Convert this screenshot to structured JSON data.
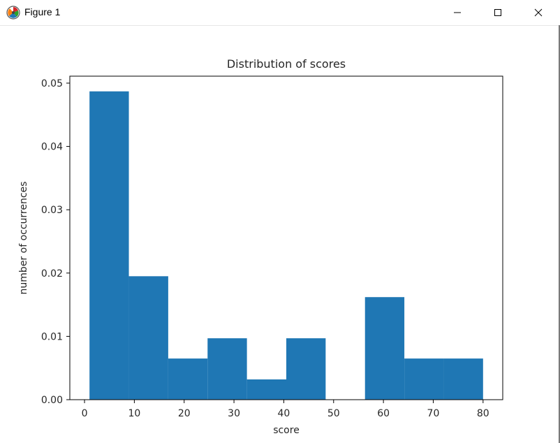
{
  "window": {
    "title": "Figure 1",
    "icon": "matplotlib-icon",
    "controls": [
      "minimize-icon",
      "maximize-icon",
      "close-icon"
    ]
  },
  "chart_data": {
    "type": "bar",
    "title": "Distribution of scores",
    "xlabel": "score",
    "ylabel": "number of occurrences",
    "bar_color": "#1f77b4",
    "bins": [
      {
        "x0": 1,
        "x1": 8.9,
        "value": 0.0487
      },
      {
        "x0": 8.9,
        "x1": 16.8,
        "value": 0.0195
      },
      {
        "x0": 16.8,
        "x1": 24.7,
        "value": 0.0065
      },
      {
        "x0": 24.7,
        "x1": 32.6,
        "value": 0.0097
      },
      {
        "x0": 32.6,
        "x1": 40.5,
        "value": 0.0032
      },
      {
        "x0": 40.5,
        "x1": 48.4,
        "value": 0.0097
      },
      {
        "x0": 48.4,
        "x1": 56.3,
        "value": 0
      },
      {
        "x0": 56.3,
        "x1": 64.2,
        "value": 0.0162
      },
      {
        "x0": 64.2,
        "x1": 72.1,
        "value": 0.0065
      },
      {
        "x0": 72.1,
        "x1": 80,
        "value": 0.0065
      }
    ],
    "xlim": [
      -2.95,
      83.95
    ],
    "ylim": [
      0,
      0.0511
    ],
    "xticks": [
      0,
      10,
      20,
      30,
      40,
      50,
      60,
      70,
      80
    ],
    "xtick_labels": [
      "0",
      "10",
      "20",
      "30",
      "40",
      "50",
      "60",
      "70",
      "80"
    ],
    "yticks": [
      0,
      0.01,
      0.02,
      0.03,
      0.04,
      0.05
    ],
    "ytick_labels": [
      "0.00",
      "0.01",
      "0.02",
      "0.03",
      "0.04",
      "0.05"
    ],
    "grid": false
  }
}
